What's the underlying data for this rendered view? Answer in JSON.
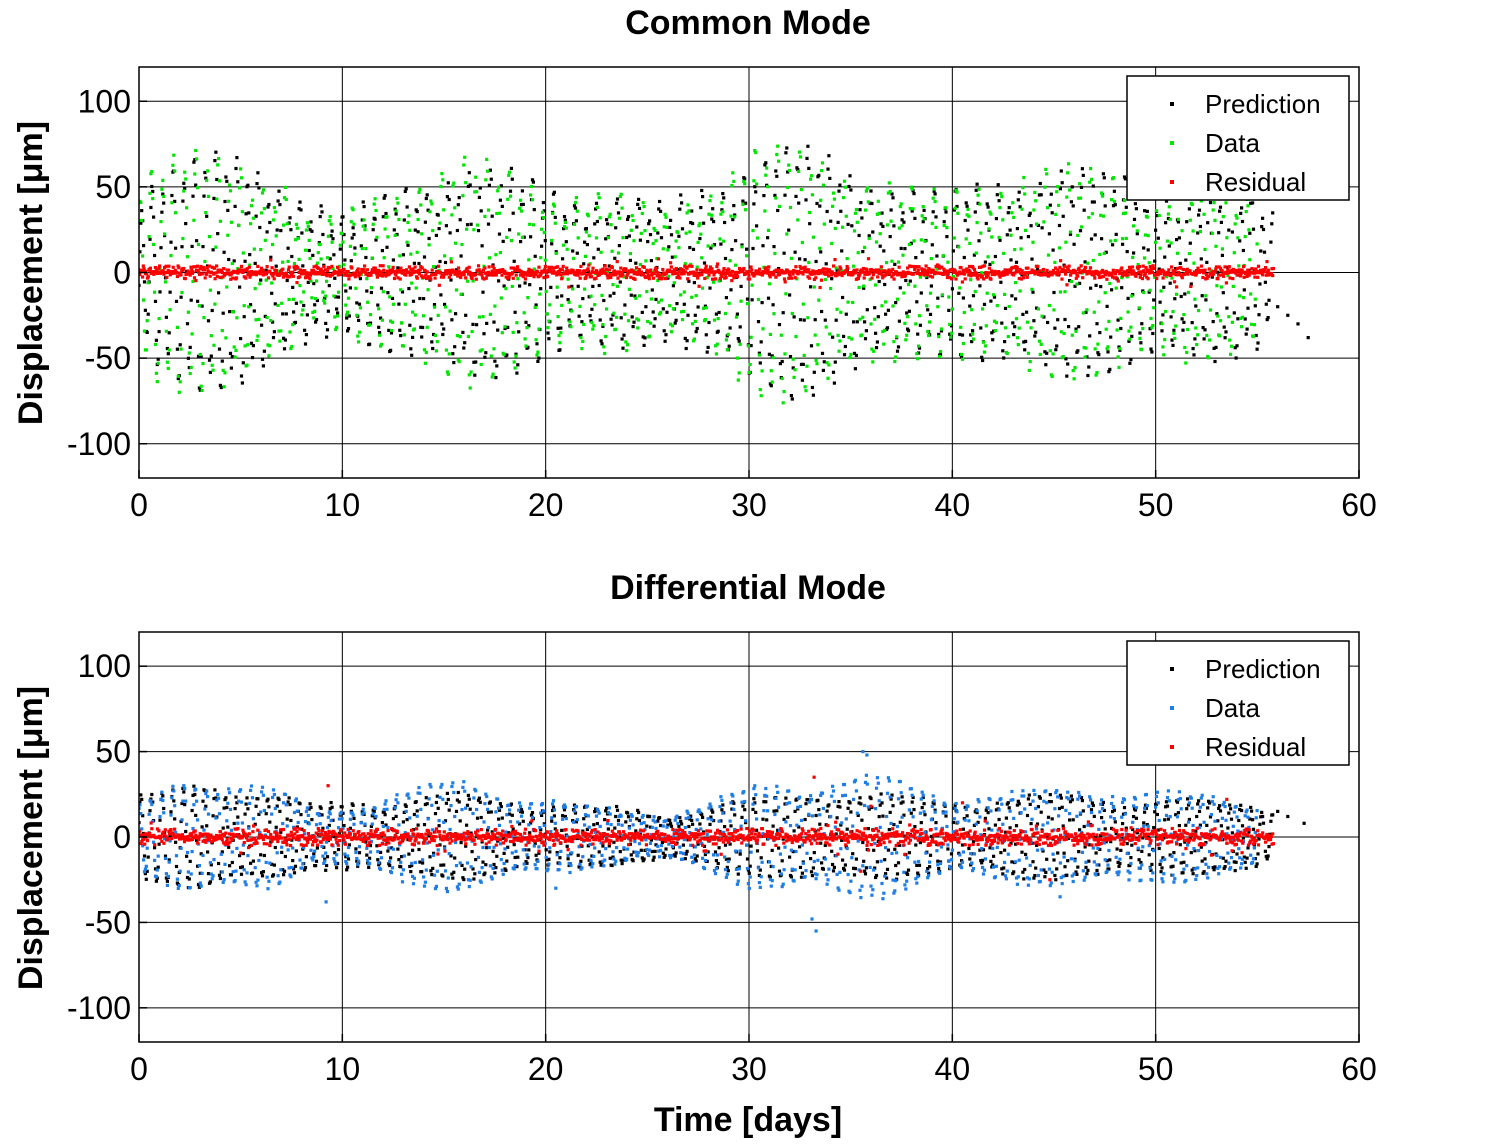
{
  "chart_data": [
    {
      "type": "scatter",
      "title": "Common Mode",
      "xlabel": "",
      "ylabel": "Displacement [μm]",
      "xlim": [
        0,
        60
      ],
      "ylim": [
        -120,
        120
      ],
      "xticks": [
        0,
        10,
        20,
        30,
        40,
        50,
        60
      ],
      "yticks": [
        -100,
        -50,
        0,
        50,
        100
      ],
      "grid": true,
      "legend_position": "top-right",
      "series": [
        {
          "name": "Prediction",
          "color": "#000000",
          "sampling": "envelope",
          "x": [
            0,
            2,
            3,
            5,
            7,
            8.5,
            10,
            12,
            14,
            16,
            18,
            20,
            22,
            24,
            26,
            28,
            30,
            32,
            33,
            35,
            37,
            39,
            41,
            43,
            45,
            47,
            49,
            51,
            53,
            55,
            55.8
          ],
          "amplitude": [
            55,
            62,
            65,
            63,
            55,
            40,
            28,
            42,
            55,
            58,
            55,
            50,
            45,
            40,
            35,
            50,
            65,
            70,
            68,
            60,
            50,
            42,
            48,
            55,
            58,
            55,
            52,
            50,
            48,
            40,
            30
          ],
          "tail": {
            "x": [
              56,
              56.5,
              57,
              57.5
            ],
            "y": [
              -20,
              -25,
              -30,
              -38
            ]
          }
        },
        {
          "name": "Data",
          "color": "#00e600",
          "sampling": "envelope",
          "x": [
            0,
            2,
            3,
            5,
            7,
            8.5,
            10,
            12,
            14,
            16,
            18,
            20,
            22,
            24,
            26,
            28,
            30,
            32,
            33,
            35,
            37,
            39,
            41,
            43,
            45,
            47,
            49,
            51,
            53,
            55
          ],
          "amplitude": [
            58,
            66,
            66,
            64,
            56,
            20,
            30,
            45,
            58,
            63,
            56,
            50,
            45,
            40,
            30,
            52,
            68,
            70,
            68,
            62,
            50,
            42,
            50,
            58,
            58,
            56,
            55,
            52,
            45,
            35
          ]
        },
        {
          "name": "Residual",
          "color": "#ff0000",
          "sampling": "noise",
          "x": [
            0,
            55.8
          ],
          "spread": 8
        }
      ],
      "legend": [
        "Prediction",
        "Data",
        "Residual"
      ]
    },
    {
      "type": "scatter",
      "title": "Differential Mode",
      "xlabel": "Time [days]",
      "ylabel": "Displacement [μm]",
      "xlim": [
        0,
        60
      ],
      "ylim": [
        -120,
        120
      ],
      "xticks": [
        0,
        10,
        20,
        30,
        40,
        50,
        60
      ],
      "yticks": [
        -100,
        -50,
        0,
        50,
        100
      ],
      "grid": true,
      "legend_position": "top-right",
      "series": [
        {
          "name": "Prediction",
          "color": "#000000",
          "sampling": "envelope",
          "x": [
            0,
            2,
            3,
            5,
            7,
            8.5,
            10,
            12,
            14,
            16,
            18,
            20,
            22,
            24,
            26,
            28,
            30,
            32,
            33,
            35,
            37,
            39,
            41,
            43,
            45,
            47,
            49,
            51,
            53,
            55,
            55.8
          ],
          "amplitude": [
            25,
            28,
            32,
            30,
            25,
            18,
            20,
            22,
            24,
            25,
            22,
            20,
            18,
            16,
            14,
            18,
            22,
            26,
            28,
            26,
            24,
            22,
            22,
            24,
            25,
            24,
            22,
            22,
            20,
            20,
            18
          ],
          "tail": {
            "x": [
              56,
              56.5,
              57.3
            ],
            "y": [
              15,
              12,
              8
            ]
          }
        },
        {
          "name": "Data",
          "color": "#1e7ee6",
          "sampling": "envelope",
          "x": [
            0,
            2,
            3,
            5,
            7,
            8.5,
            10,
            12,
            14,
            16,
            18,
            20,
            22,
            24,
            26,
            28,
            30,
            32,
            33,
            35,
            37,
            39,
            41,
            43,
            45,
            47,
            49,
            51,
            53,
            55
          ],
          "amplitude": [
            18,
            33,
            36,
            34,
            28,
            15,
            18,
            25,
            30,
            33,
            28,
            22,
            18,
            15,
            14,
            20,
            30,
            34,
            33,
            36,
            35,
            28,
            24,
            26,
            30,
            30,
            27,
            26,
            25,
            22
          ],
          "outliers": {
            "x": [
              35.6,
              35.8,
              33.1,
              33.3,
              9.2,
              20.5,
              45.3
            ],
            "y": [
              50,
              48,
              -48,
              -55,
              -38,
              -30,
              -35
            ]
          }
        },
        {
          "name": "Residual",
          "color": "#ff0000",
          "sampling": "noise",
          "x": [
            0,
            55.8
          ],
          "spread": 10,
          "outliers": {
            "x": [
              9.3,
              33.2,
              35.5,
              36.0,
              40.5,
              44.8,
              53.5
            ],
            "y": [
              30,
              35,
              -20,
              18,
              20,
              -25,
              22
            ]
          }
        }
      ],
      "legend": [
        "Prediction",
        "Data",
        "Residual"
      ]
    }
  ]
}
